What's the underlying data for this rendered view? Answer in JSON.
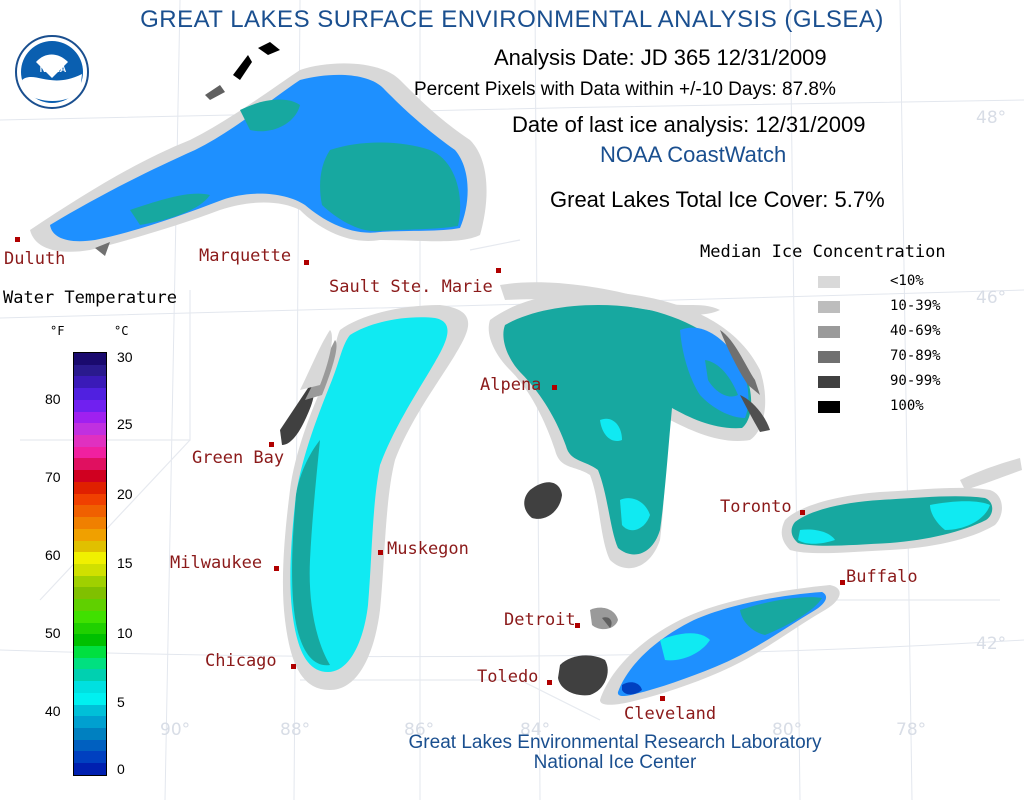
{
  "title": "GREAT LAKES SURFACE ENVIRONMENTAL ANALYSIS (GLSEA)",
  "analysis_date": "Analysis Date:  JD 365 12/31/2009",
  "percent_pixels": "Percent Pixels with Data within +/-10 Days:  87.8%",
  "last_ice": "Date of last ice analysis: 12/31/2009",
  "coastwatch": "NOAA CoastWatch",
  "total_ice": "Great Lakes Total Ice Cover:   5.7%",
  "logo_text": "NOAA",
  "legend_ice": {
    "title": "Median Ice Concentration",
    "items": [
      {
        "label": "<10%",
        "color": "#d9d9d9"
      },
      {
        "label": "10-39%",
        "color": "#bdbdbd"
      },
      {
        "label": "40-69%",
        "color": "#9a9a9a"
      },
      {
        "label": "70-89%",
        "color": "#707070"
      },
      {
        "label": "90-99%",
        "color": "#404040"
      },
      {
        "label": "100%",
        "color": "#000000"
      }
    ]
  },
  "legend_temp": {
    "title": "Water Temperature",
    "unit_f": "°F",
    "unit_c": "°C",
    "f_ticks": [
      "80",
      "70",
      "60",
      "50",
      "40"
    ],
    "c_ticks": [
      "30",
      "25",
      "20",
      "15",
      "10",
      "5",
      "0"
    ],
    "colors": [
      "#1a0a6e",
      "#2a1a8e",
      "#3a1ab8",
      "#5020e0",
      "#7020f0",
      "#a020f0",
      "#c030e0",
      "#e030c0",
      "#f020a0",
      "#e01060",
      "#d00020",
      "#e02000",
      "#f04000",
      "#f06000",
      "#f08000",
      "#f0a000",
      "#e0c000",
      "#f0f000",
      "#d0e000",
      "#a0d000",
      "#80c000",
      "#60d000",
      "#40e000",
      "#20d000",
      "#00c000",
      "#00e040",
      "#00e080",
      "#00d0b0",
      "#00e0e0",
      "#00f0f0",
      "#00c0d8",
      "#00a0d0",
      "#0080c0",
      "#0060c0",
      "#0040c0",
      "#0020b0"
    ]
  },
  "cities": [
    {
      "name": "Duluth",
      "key": "duluth"
    },
    {
      "name": "Marquette",
      "key": "marquette"
    },
    {
      "name": "Sault Ste. Marie",
      "key": "sault"
    },
    {
      "name": "Alpena",
      "key": "alpena"
    },
    {
      "name": "Green Bay",
      "key": "greenbay"
    },
    {
      "name": "Milwaukee",
      "key": "milwaukee"
    },
    {
      "name": "Muskegon",
      "key": "muskegon"
    },
    {
      "name": "Chicago",
      "key": "chicago"
    },
    {
      "name": "Detroit",
      "key": "detroit"
    },
    {
      "name": "Toledo",
      "key": "toledo"
    },
    {
      "name": "Cleveland",
      "key": "cleveland"
    },
    {
      "name": "Toronto",
      "key": "toronto"
    },
    {
      "name": "Buffalo",
      "key": "buffalo"
    }
  ],
  "grid_labels": {
    "lat48": "48°",
    "lat46": "46°",
    "lat42": "42°",
    "lon90": "90°",
    "lon88": "88°",
    "lon86": "86°",
    "lon84": "84°",
    "lon80": "80°",
    "lon78": "78°"
  },
  "footer_line1": "Great Lakes Environmental Research Laboratory",
  "footer_line2": "National Ice Center",
  "colors": {
    "title_blue": "#1a4f8f",
    "city_red": "#8b1a1a",
    "water_blue": "#1e90ff",
    "water_teal": "#17a8a0",
    "water_cyan": "#10eaf2",
    "land_ice": "#d8d8d8"
  }
}
